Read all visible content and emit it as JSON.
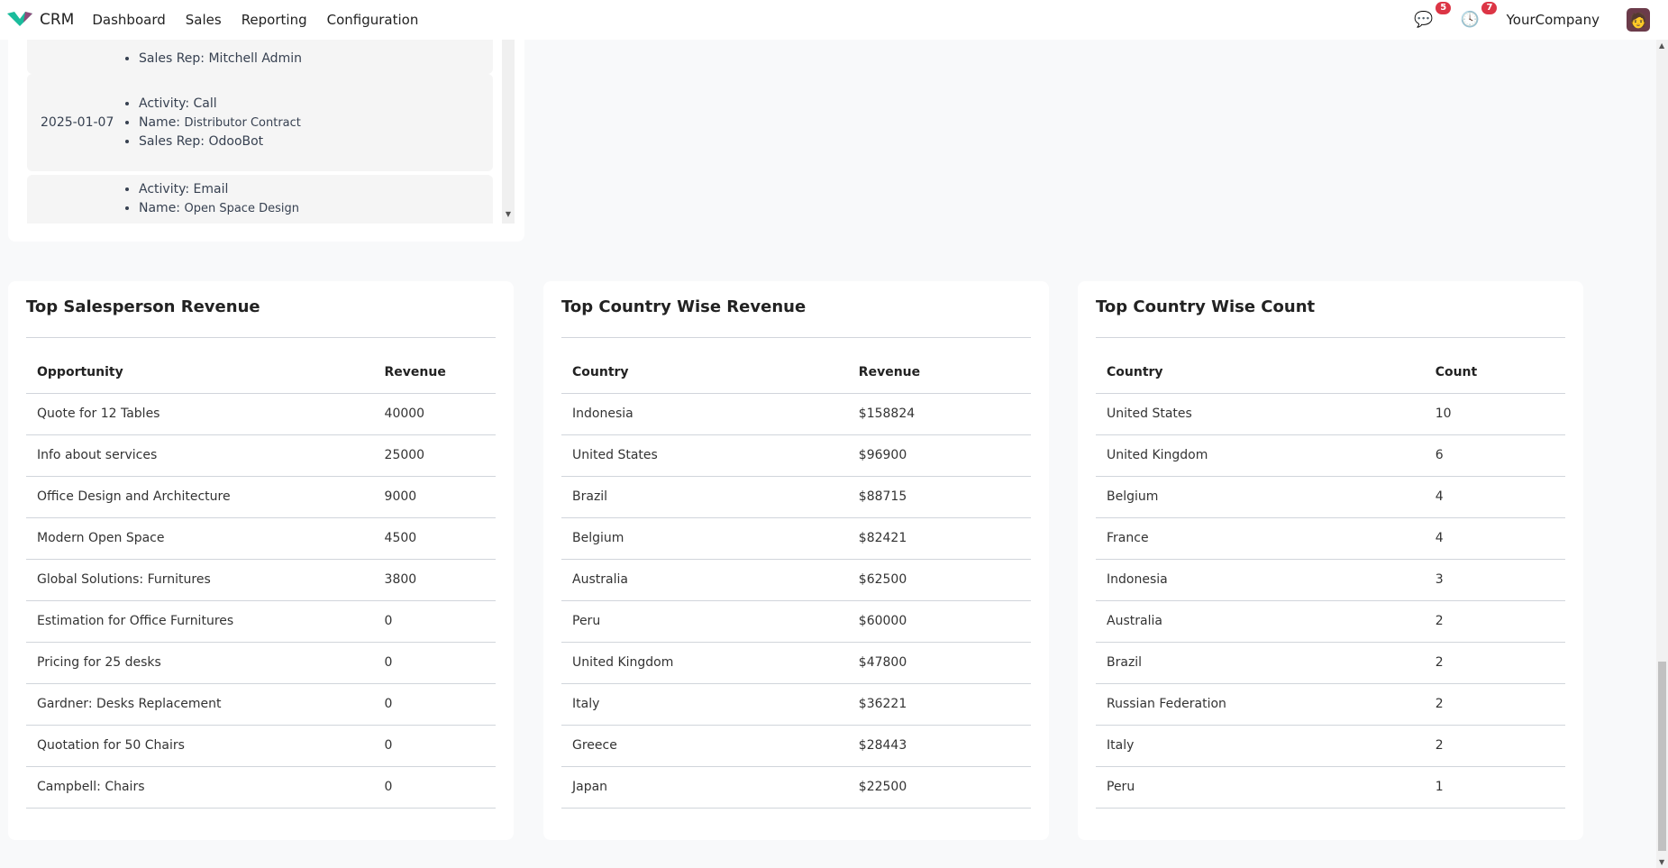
{
  "nav": {
    "app": "CRM",
    "menu": [
      "Dashboard",
      "Sales",
      "Reporting",
      "Configuration"
    ],
    "messages_count": "5",
    "activities_count": "7",
    "company": "YourCompany"
  },
  "activities": [
    {
      "date": "",
      "items": [
        "Sales Rep: Mitchell Admin"
      ]
    },
    {
      "date": "2025-01-07",
      "activity": "Activity: Call",
      "name_label": "Name:",
      "name": "Distributor Contract",
      "rep": "Sales Rep: OdooBot"
    },
    {
      "date": "",
      "activity": "Activity: Email",
      "name_label": "Name:",
      "name": "Open Space Design"
    }
  ],
  "salesperson": {
    "title": "Top Salesperson Revenue",
    "headers": [
      "Opportunity",
      "Revenue"
    ],
    "rows": [
      [
        "Quote for 12 Tables",
        "40000"
      ],
      [
        "Info about services",
        "25000"
      ],
      [
        "Office Design and Architecture",
        "9000"
      ],
      [
        "Modern Open Space",
        "4500"
      ],
      [
        "Global Solutions: Furnitures",
        "3800"
      ],
      [
        "Estimation for Office Furnitures",
        "0"
      ],
      [
        "Pricing for 25 desks",
        "0"
      ],
      [
        "Gardner: Desks Replacement",
        "0"
      ],
      [
        "Quotation for 50 Chairs",
        "0"
      ],
      [
        "Campbell: Chairs",
        "0"
      ]
    ]
  },
  "country_revenue": {
    "title": "Top Country Wise Revenue",
    "headers": [
      "Country",
      "Revenue"
    ],
    "rows": [
      [
        "Indonesia",
        "$158824"
      ],
      [
        "United States",
        "$96900"
      ],
      [
        "Brazil",
        "$88715"
      ],
      [
        "Belgium",
        "$82421"
      ],
      [
        "Australia",
        "$62500"
      ],
      [
        "Peru",
        "$60000"
      ],
      [
        "United Kingdom",
        "$47800"
      ],
      [
        "Italy",
        "$36221"
      ],
      [
        "Greece",
        "$28443"
      ],
      [
        "Japan",
        "$22500"
      ]
    ]
  },
  "country_count": {
    "title": "Top Country Wise Count",
    "headers": [
      "Country",
      "Count"
    ],
    "rows": [
      [
        "United States",
        "10"
      ],
      [
        "United Kingdom",
        "6"
      ],
      [
        "Belgium",
        "4"
      ],
      [
        "France",
        "4"
      ],
      [
        "Indonesia",
        "3"
      ],
      [
        "Australia",
        "2"
      ],
      [
        "Brazil",
        "2"
      ],
      [
        "Russian Federation",
        "2"
      ],
      [
        "Italy",
        "2"
      ],
      [
        "Peru",
        "1"
      ]
    ]
  }
}
